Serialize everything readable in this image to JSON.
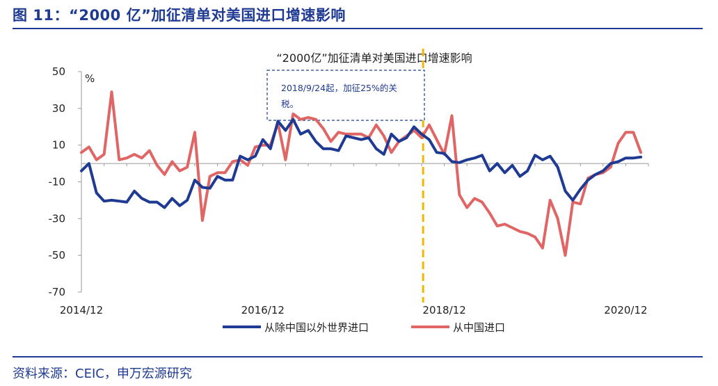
{
  "header": {
    "figure_title": "图 11：“2000 亿”加征清单对美国进口增速影响"
  },
  "footer": {
    "source": "资料来源：CEIC，申万宏源研究"
  },
  "colors": {
    "title_blue": "#1f3a93",
    "series_world": "#1f3a93",
    "series_china": "#e06666",
    "event_line": "#f2b705"
  },
  "chart_data": {
    "type": "line",
    "title": "“2000亿”加征清单对美国进口增速影响",
    "unit_label": "%",
    "ylim": [
      -70,
      50
    ],
    "yticks": [
      50,
      30,
      10,
      -10,
      -30,
      -50,
      -70
    ],
    "xlim": [
      0,
      75
    ],
    "xticks": [
      {
        "x": 0,
        "label": "2014/12"
      },
      {
        "x": 24,
        "label": "2016/12"
      },
      {
        "x": 48,
        "label": "2018/12"
      },
      {
        "x": 72,
        "label": "2020/12"
      }
    ],
    "grid": false,
    "legend_position": "bottom",
    "event": {
      "x": 45.2,
      "label": "2018/9/24起，加征25%的关税。"
    },
    "series": [
      {
        "name": "从除中国以外世界进口",
        "color": "#1f3a93",
        "values": [
          -4,
          0,
          -16,
          -20.5,
          -20,
          -20.5,
          -21,
          -15,
          -19,
          -21,
          -21,
          -24,
          -19,
          -23,
          -20,
          -9,
          -13,
          -13.5,
          -7,
          -9,
          -9,
          4,
          2,
          4,
          13,
          8,
          23,
          18,
          24,
          16,
          18,
          12,
          8,
          8,
          7,
          15,
          14,
          13,
          14,
          8,
          5,
          16,
          12,
          14,
          20,
          16,
          13,
          6,
          5.5,
          1,
          0.5,
          2,
          3,
          4.5,
          -4,
          0,
          -5,
          -1,
          -7,
          -4,
          4.5,
          2,
          4,
          -2,
          -15,
          -20,
          -14,
          -9,
          -6,
          -4,
          0,
          1,
          3,
          3,
          3.5
        ]
      },
      {
        "name": "从中国进口",
        "color": "#e06666",
        "values": [
          6,
          9,
          2,
          5,
          39,
          2,
          3,
          5,
          3,
          7,
          -1,
          -6,
          1,
          -4,
          -2,
          17,
          -31,
          -7,
          -5,
          -5,
          1,
          2,
          -1,
          9,
          10,
          10,
          22,
          2,
          27,
          24,
          25,
          24,
          19,
          12,
          17,
          16,
          16,
          16,
          14,
          21,
          15,
          6,
          12,
          15,
          18,
          14,
          21,
          13,
          5,
          26,
          -17,
          -24,
          -19,
          -21,
          -27,
          -34,
          -33,
          -35,
          -37,
          -38,
          -40,
          -46,
          -20,
          -30,
          -50,
          -21,
          -22,
          -8,
          -6,
          -5,
          -2,
          11,
          17,
          17,
          6
        ]
      }
    ]
  }
}
